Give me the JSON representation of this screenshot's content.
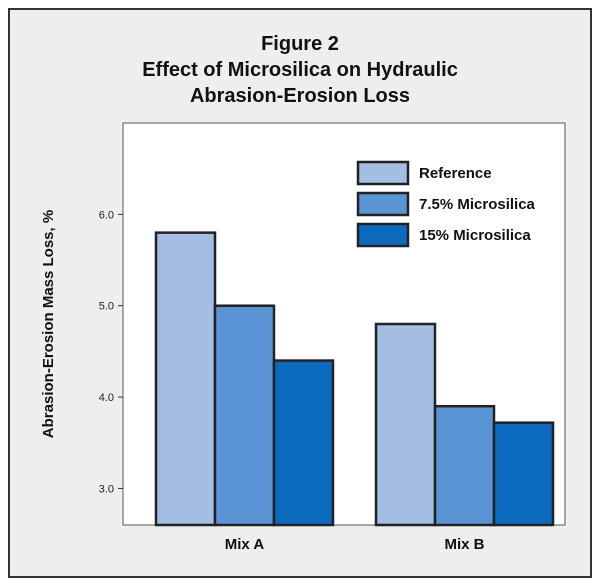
{
  "chart_data": {
    "type": "bar",
    "title_lines": [
      "Figure 2",
      "Effect of Microsilica on Hydraulic",
      "Abrasion-Erosion Loss"
    ],
    "ylabel": "Abrasion-Erosion Mass Loss, %",
    "xlabel": "",
    "ylim": [
      2.6,
      7.0
    ],
    "yticks": [
      3.0,
      4.0,
      5.0,
      6.0
    ],
    "ytick_labels": [
      "3.0",
      "4.0",
      "5.0",
      "6.0"
    ],
    "categories": [
      "Mix A",
      "Mix B"
    ],
    "series": [
      {
        "name": "Reference",
        "color": "#a3bde3",
        "values": [
          5.8,
          4.8
        ]
      },
      {
        "name": "7.5% Microsilica",
        "color": "#5b94d4",
        "values": [
          5.0,
          3.9
        ]
      },
      {
        "name": "15% Microsilica",
        "color": "#0d6bbf",
        "values": [
          4.4,
          3.72
        ]
      }
    ],
    "legend_position": "top-right",
    "grid": false
  }
}
